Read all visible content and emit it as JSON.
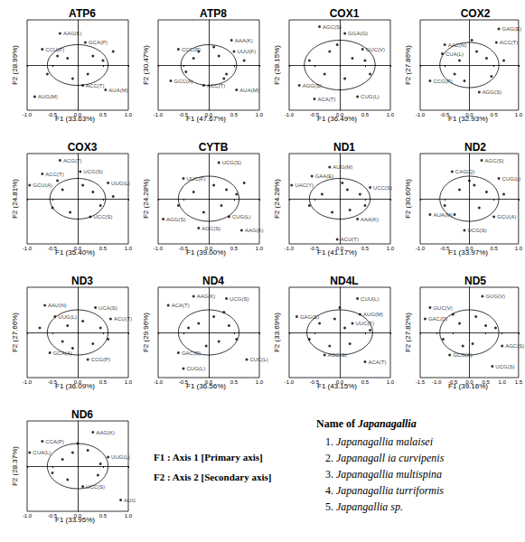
{
  "chart_data": [
    {
      "type": "scatter",
      "title": "ATP6",
      "xlabel": "F1 (33.63%)",
      "ylabel": "F2 (28.99%)",
      "marker": "circle",
      "color": "#000000",
      "grid": false,
      "tick_labels": "x",
      "xlim": [
        -1,
        1
      ],
      "ylim": [
        -1,
        1
      ],
      "xticks": [
        {
          "value": -1,
          "label": "-1.0"
        },
        {
          "value": -0.5,
          "label": "-0.5"
        },
        {
          "value": 0,
          "label": "0.0"
        },
        {
          "value": 0.5,
          "label": "0.5"
        },
        {
          "value": 1,
          "label": "1.0"
        }
      ],
      "ellipse": {
        "cx": 0,
        "cy": 0,
        "rx": 0.6,
        "ry": 0.45
      },
      "x": [
        -0.35,
        0.15,
        -0.7,
        -0.85,
        0.1,
        0.55,
        -0.4,
        -0.2,
        0.3,
        0.5,
        -0.6,
        0.2,
        0.7,
        -0.1
      ],
      "y": [
        0.7,
        0.5,
        0.35,
        -0.7,
        -0.45,
        -0.55,
        0.2,
        0.15,
        0.2,
        0.1,
        -0.2,
        -0.2,
        0.3,
        -0.3
      ],
      "labels": [
        "AAG(K)",
        "GCA(P)",
        "CCU(P)",
        "AUG(M)",
        "ACC(T)",
        "AUA(M)",
        null,
        null,
        null,
        null,
        null,
        null,
        null,
        null
      ]
    },
    {
      "type": "scatter",
      "title": "ATP8",
      "xlabel": "F1 (47.67%)",
      "ylabel": "F2 (30.47%)",
      "marker": "circle",
      "color": "#000000",
      "grid": false,
      "tick_labels": "x",
      "xlim": [
        -1,
        1
      ],
      "ylim": [
        -1,
        1
      ],
      "xticks": [
        {
          "value": -1,
          "label": "-1.0"
        },
        {
          "value": -0.5,
          "label": "-0.5"
        },
        {
          "value": 0,
          "label": "0.0"
        },
        {
          "value": 0.5,
          "label": "0.5"
        },
        {
          "value": 1,
          "label": "1.0"
        }
      ],
      "ellipse": {
        "cx": 0,
        "cy": 0,
        "rx": 0.55,
        "ry": 0.45
      },
      "x": [
        0.45,
        -0.6,
        0.5,
        -0.1,
        0.55,
        -0.75,
        -0.3,
        0.2,
        0.35,
        -0.45,
        0.1,
        0.7,
        -0.2,
        0.3
      ],
      "y": [
        0.55,
        0.35,
        0.3,
        -0.45,
        -0.55,
        -0.35,
        0.15,
        0.2,
        -0.2,
        -0.15,
        0.4,
        0.1,
        0.3,
        -0.3
      ],
      "labels": [
        "AAA(K)",
        "CCC(P)",
        "UUU(F)",
        "ACC(T)",
        "AUA(M)",
        "GCC(A)",
        null,
        null,
        null,
        null,
        null,
        null,
        null,
        null
      ]
    },
    {
      "type": "scatter",
      "title": "COX1",
      "xlabel": "F1 (36.49%)",
      "ylabel": "F2 (28.15%)",
      "marker": "circle",
      "color": "#000000",
      "grid": false,
      "tick_labels": "x",
      "xlim": [
        -1,
        1
      ],
      "ylim": [
        -1,
        1
      ],
      "xticks": [
        {
          "value": -1,
          "label": "-1.0"
        },
        {
          "value": -0.5,
          "label": "-0.5"
        },
        {
          "value": 0,
          "label": "0.0"
        },
        {
          "value": 0.5,
          "label": "0.5"
        },
        {
          "value": 1,
          "label": "1.0"
        }
      ],
      "ellipse": {
        "cx": 0,
        "cy": 0,
        "rx": 0.7,
        "ry": 0.55
      },
      "x": [
        0.1,
        -0.4,
        0.45,
        -0.8,
        0.35,
        -0.5,
        -0.2,
        0.25,
        -0.6,
        0.6,
        0.1,
        -0.3,
        0.5,
        -0.05
      ],
      "y": [
        0.7,
        0.85,
        0.35,
        -0.45,
        -0.7,
        -0.75,
        0.3,
        0.15,
        0.1,
        -0.2,
        -0.3,
        -0.2,
        0.1,
        0.45
      ],
      "labels": [
        "GGA(G)",
        "AGC(S)",
        "GUC(V)",
        "AGG(S)",
        "CUG(L)",
        "ACA(T)",
        null,
        null,
        null,
        null,
        null,
        null,
        null,
        null
      ]
    },
    {
      "type": "scatter",
      "title": "COX2",
      "xlabel": "F1 (32.93%)",
      "ylabel": "F2 (27.86%)",
      "marker": "circle",
      "color": "#000000",
      "grid": false,
      "tick_labels": "x",
      "xlim": [
        -1,
        1
      ],
      "ylim": [
        -1,
        1
      ],
      "xticks": [
        {
          "value": -1,
          "label": "-1.0"
        },
        {
          "value": -0.5,
          "label": "-0.5"
        },
        {
          "value": 0,
          "label": "0.0"
        },
        {
          "value": 0.5,
          "label": "0.5"
        },
        {
          "value": 1,
          "label": "1.0"
        }
      ],
      "ellipse": {
        "cx": 0,
        "cy": 0,
        "rx": 0.6,
        "ry": 0.5
      },
      "x": [
        0.6,
        0.55,
        -0.5,
        -0.8,
        -0.55,
        0.2,
        -0.2,
        0.15,
        0.35,
        -0.3,
        0.45,
        -0.1,
        0.7,
        0.05
      ],
      "y": [
        0.8,
        0.5,
        0.45,
        -0.35,
        0.25,
        -0.6,
        0.1,
        0.3,
        0.15,
        -0.2,
        -0.25,
        -0.35,
        0.1,
        0.55
      ],
      "labels": [
        "GAG(E)",
        "ACC(T)",
        "AAC(N)",
        "CCG(P)",
        "CUA(L)",
        "AGG(S)",
        null,
        null,
        null,
        null,
        null,
        null,
        null,
        null
      ]
    },
    {
      "type": "scatter",
      "title": "COX3",
      "xlabel": "F1 (35.40%)",
      "ylabel": "F2 (24.81%)",
      "marker": "circle",
      "color": "#000000",
      "grid": false,
      "tick_labels": "x",
      "xlim": [
        -1,
        1
      ],
      "ylim": [
        -1,
        1
      ],
      "xticks": [
        {
          "value": -1,
          "label": "-1.0"
        },
        {
          "value": -0.5,
          "label": "-0.5"
        },
        {
          "value": 0,
          "label": "0.0"
        },
        {
          "value": 0.5,
          "label": "0.5"
        },
        {
          "value": 1,
          "label": "1.0"
        }
      ],
      "ellipse": {
        "cx": 0,
        "cy": 0,
        "rx": 0.55,
        "ry": 0.45
      },
      "x": [
        -0.35,
        -0.7,
        0.05,
        0.6,
        0.25,
        -0.95,
        -0.3,
        0.3,
        -0.5,
        0.45,
        0.1,
        -0.15,
        0.7,
        -0.4
      ],
      "y": [
        0.85,
        0.55,
        0.6,
        0.35,
        -0.4,
        0.3,
        0.2,
        0.15,
        -0.2,
        -0.15,
        0.3,
        -0.3,
        0.05,
        0.4
      ],
      "labels": [
        "ACG(T)",
        "ACC(T)",
        "UCG(S)",
        "UUG(L)",
        "UCC(S)",
        "GCU(A)",
        null,
        null,
        null,
        null,
        null,
        null,
        null,
        null
      ]
    },
    {
      "type": "scatter",
      "title": "CYTB",
      "xlabel": "F1 (39.00%)",
      "ylabel": "F2 (24.28%)",
      "marker": "circle",
      "color": "#000000",
      "grid": false,
      "tick_labels": "x",
      "xlim": [
        -1,
        1
      ],
      "ylim": [
        -1,
        1
      ],
      "xticks": [
        {
          "value": -1,
          "label": "-1.0"
        },
        {
          "value": -0.5,
          "label": "-0.5"
        },
        {
          "value": 0,
          "label": "0.0"
        },
        {
          "value": 0.5,
          "label": "0.5"
        },
        {
          "value": 1,
          "label": "1.0"
        }
      ],
      "ellipse": {
        "cx": 0,
        "cy": 0,
        "rx": 0.6,
        "ry": 0.5
      },
      "x": [
        0.2,
        -0.5,
        -0.9,
        0.4,
        0.65,
        -0.2,
        -0.3,
        0.1,
        0.35,
        -0.6,
        0.55,
        -0.1,
        0.25,
        0.7
      ],
      "y": [
        0.8,
        0.45,
        -0.45,
        -0.4,
        -0.7,
        -0.65,
        0.15,
        0.3,
        0.2,
        -0.15,
        0.1,
        -0.3,
        -0.15,
        0.35
      ],
      "labels": [
        "UCG(S)",
        "UUC(F)",
        "AGG(S)",
        "CUG(L)",
        "AAG(K)",
        "AGC(S)",
        null,
        null,
        null,
        null,
        null,
        null,
        null,
        null
      ]
    },
    {
      "type": "scatter",
      "title": "ND1",
      "xlabel": "F1 (41.17%)",
      "ylabel": "F2 (24.28%)",
      "marker": "circle",
      "color": "#000000",
      "grid": false,
      "tick_labels": "x",
      "xlim": [
        -1,
        1
      ],
      "ylim": [
        -1,
        1
      ],
      "xticks": [
        {
          "value": -1,
          "label": "-1.0"
        },
        {
          "value": -0.5,
          "label": "-0.5"
        },
        {
          "value": 0,
          "label": "0.0"
        },
        {
          "value": 0.5,
          "label": "0.5"
        },
        {
          "value": 1,
          "label": "1.0"
        }
      ],
      "ellipse": {
        "cx": 0,
        "cy": 0,
        "rx": 0.6,
        "ry": 0.45
      },
      "x": [
        -0.2,
        -0.95,
        0.6,
        0.35,
        -0.05,
        -0.55,
        -0.35,
        0.15,
        0.4,
        -0.6,
        0.2,
        -0.15,
        0.5,
        0.05
      ],
      "y": [
        0.7,
        0.3,
        0.25,
        -0.45,
        -0.9,
        0.5,
        0.1,
        0.2,
        0.1,
        -0.15,
        -0.25,
        -0.3,
        -0.15,
        0.35
      ],
      "labels": [
        "AUG(M)",
        "UAC(Y)",
        "UCC(S)",
        "AAA(K)",
        "ACU(T)",
        "GAA(E)",
        null,
        null,
        null,
        null,
        null,
        null,
        null,
        null
      ]
    },
    {
      "type": "scatter",
      "title": "ND2",
      "xlabel": "F1 (33.97%)",
      "ylabel": "F2 (30.60%)",
      "marker": "circle",
      "color": "#000000",
      "grid": false,
      "tick_labels": "x",
      "xlim": [
        -1,
        1
      ],
      "ylim": [
        -1,
        1
      ],
      "xticks": [
        {
          "value": -1,
          "label": "-1.0"
        },
        {
          "value": -0.5,
          "label": "-0.5"
        },
        {
          "value": 0,
          "label": "0.0"
        },
        {
          "value": 0.5,
          "label": "0.5"
        },
        {
          "value": 1,
          "label": "1.0"
        }
      ],
      "ellipse": {
        "cx": 0,
        "cy": 0,
        "rx": 0.6,
        "ry": 0.5
      },
      "x": [
        0.25,
        -0.35,
        0.6,
        -0.8,
        0.5,
        -0.1,
        -0.2,
        0.1,
        0.35,
        -0.5,
        0.2,
        -0.3,
        0.7,
        0.0
      ],
      "y": [
        0.85,
        0.6,
        0.45,
        -0.35,
        -0.4,
        -0.7,
        0.2,
        0.3,
        0.15,
        -0.15,
        -0.2,
        -0.35,
        0.1,
        0.4
      ],
      "labels": [
        "AGC(S)",
        "CAG(Q)",
        "CUG(L)",
        "AUA(M)",
        "GCU(A)",
        "UCG(S)",
        null,
        null,
        null,
        null,
        null,
        null,
        null,
        null
      ]
    },
    {
      "type": "scatter",
      "title": "ND3",
      "xlabel": "F1 (36.09%)",
      "ylabel": "F2 (27.66%)",
      "marker": "circle",
      "color": "#000000",
      "grid": false,
      "tick_labels": "x",
      "xlim": [
        -1,
        1
      ],
      "ylim": [
        -1,
        1
      ],
      "xticks": [
        {
          "value": -1,
          "label": "-1.0"
        },
        {
          "value": -0.5,
          "label": "-0.5"
        },
        {
          "value": 0,
          "label": "0.0"
        },
        {
          "value": 0.5,
          "label": "0.5"
        },
        {
          "value": 1,
          "label": "1.0"
        }
      ],
      "ellipse": {
        "cx": 0,
        "cy": 0,
        "rx": 0.6,
        "ry": 0.5
      },
      "x": [
        -0.65,
        0.35,
        -0.45,
        0.65,
        -0.55,
        0.2,
        -0.2,
        0.1,
        0.45,
        -0.3,
        0.3,
        -0.1,
        0.6,
        -0.75
      ],
      "y": [
        0.6,
        0.55,
        0.35,
        0.3,
        -0.45,
        -0.6,
        0.15,
        0.25,
        0.1,
        -0.2,
        -0.25,
        -0.35,
        -0.15,
        0.1
      ],
      "labels": [
        "AAU(N)",
        "UCA(S)",
        "UUG(L)",
        "ACU(T)",
        "GCA(A)",
        "CCG(P)",
        null,
        null,
        null,
        null,
        null,
        null,
        null,
        null
      ]
    },
    {
      "type": "scatter",
      "title": "ND4",
      "xlabel": "F1 (36.56%)",
      "ylabel": "F2 (29.96%)",
      "marker": "circle",
      "color": "#000000",
      "grid": false,
      "tick_labels": "x",
      "xlim": [
        -1,
        1
      ],
      "ylim": [
        -1,
        1
      ],
      "xticks": [
        {
          "value": -1,
          "label": "-1.0"
        },
        {
          "value": -0.5,
          "label": "-0.5"
        },
        {
          "value": 0,
          "label": "0.0"
        },
        {
          "value": 0.5,
          "label": "0.5"
        },
        {
          "value": 1,
          "label": "1.0"
        }
      ],
      "ellipse": {
        "cx": 0,
        "cy": 0,
        "rx": 0.6,
        "ry": 0.5
      },
      "x": [
        -0.8,
        -0.3,
        0.35,
        -0.6,
        -0.5,
        0.75,
        -0.2,
        0.1,
        0.4,
        -0.4,
        0.2,
        -0.05,
        0.55,
        0.3
      ],
      "y": [
        0.6,
        0.8,
        0.75,
        -0.45,
        -0.8,
        -0.6,
        0.2,
        0.35,
        0.15,
        0.1,
        -0.2,
        -0.3,
        -0.15,
        0.45
      ],
      "labels": [
        "ACA(T)",
        "AAG(K)",
        "UCG(S)",
        "GAC(D)",
        "CUG(L)",
        "CUC(L)",
        null,
        null,
        null,
        null,
        null,
        null,
        null,
        null
      ]
    },
    {
      "type": "scatter",
      "title": "ND4L",
      "xlabel": "F1 (43.15%)",
      "ylabel": "F2 (33.69%)",
      "marker": "circle",
      "color": "#000000",
      "grid": false,
      "tick_labels": "x",
      "xlim": [
        -1,
        1
      ],
      "ylim": [
        -1,
        1
      ],
      "xticks": [
        {
          "value": -1,
          "label": "-1.0"
        },
        {
          "value": -0.5,
          "label": "-0.5"
        },
        {
          "value": 0,
          "label": "0.0"
        },
        {
          "value": 0.5,
          "label": "0.5"
        },
        {
          "value": 1,
          "label": "1.0"
        }
      ],
      "ellipse": {
        "cx": 0,
        "cy": 0,
        "rx": 0.65,
        "ry": 0.5
      },
      "x": [
        -0.85,
        0.4,
        0.25,
        0.35,
        -0.3,
        0.5,
        -0.4,
        -0.1,
        0.1,
        -0.6,
        0.2,
        -0.2,
        0.6,
        0.0
      ],
      "y": [
        0.35,
        0.4,
        0.2,
        0.75,
        -0.5,
        -0.65,
        0.2,
        0.3,
        0.1,
        -0.15,
        -0.25,
        -0.3,
        0.05,
        0.55
      ],
      "labels": [
        "GAG(E)",
        "AUG(M)",
        "UUC(F)",
        "CUU(L)",
        "AGC(S)",
        "ACA(T)",
        null,
        null,
        null,
        null,
        null,
        null,
        null,
        null
      ]
    },
    {
      "type": "scatter",
      "title": "ND5",
      "xlabel": "F1 (39.16%)",
      "ylabel": "F2 (27.82%)",
      "marker": "circle",
      "color": "#000000",
      "grid": false,
      "tick_labels": "x",
      "xlim": [
        -1.5,
        1.5
      ],
      "ylim": [
        -1,
        1
      ],
      "xticks": [
        {
          "value": -1.5,
          "label": "-1.5"
        },
        {
          "value": -1,
          "label": "-1.0"
        },
        {
          "value": -0.5,
          "label": "-0.5"
        },
        {
          "value": 0,
          "label": "0.0"
        },
        {
          "value": 0.5,
          "label": "0.5"
        },
        {
          "value": 1,
          "label": "1.0"
        },
        {
          "value": 1.5,
          "label": "1.5"
        }
      ],
      "ellipse": {
        "cx": 0,
        "cy": 0,
        "rx": 0.9,
        "ry": 0.5
      },
      "x": [
        0.4,
        -1.2,
        -1.35,
        1.0,
        0.7,
        -0.6,
        -0.3,
        0.2,
        0.5,
        -0.8,
        0.1,
        -0.2,
        0.8,
        -0.5
      ],
      "y": [
        0.8,
        0.55,
        0.3,
        -0.3,
        -0.75,
        -0.5,
        0.2,
        0.35,
        0.15,
        -0.15,
        -0.25,
        -0.3,
        0.1,
        0.4
      ],
      "labels": [
        "GUG(V)",
        "GUC(V)",
        "GAC(D)",
        "AGC(S)",
        "UCG(S)",
        "GCG(A)",
        null,
        null,
        null,
        null,
        null,
        null,
        null,
        null
      ]
    },
    {
      "type": "scatter",
      "title": "ND6",
      "xlabel": "F1 (33.95%)",
      "ylabel": "F2 (28.37%)",
      "marker": "circle",
      "color": "#000000",
      "grid": false,
      "tick_labels": "x",
      "xlim": [
        -1,
        1
      ],
      "ylim": [
        -1,
        1
      ],
      "xticks": [
        {
          "value": -1,
          "label": "-1.0"
        },
        {
          "value": -0.5,
          "label": "-0.5"
        },
        {
          "value": 0,
          "label": "0.0"
        },
        {
          "value": 0.5,
          "label": "0.5"
        },
        {
          "value": 1,
          "label": "1.0"
        }
      ],
      "ellipse": {
        "cx": 0,
        "cy": 0,
        "rx": 0.6,
        "ry": 0.5
      },
      "x": [
        0.3,
        -0.7,
        -0.95,
        0.6,
        0.1,
        0.85,
        -0.3,
        -0.1,
        0.2,
        -0.5,
        0.4,
        -0.2,
        0.45,
        0.0
      ],
      "y": [
        0.75,
        0.55,
        0.3,
        0.2,
        -0.45,
        -0.75,
        0.15,
        0.3,
        0.35,
        -0.15,
        -0.2,
        -0.3,
        0.05,
        0.5
      ],
      "labels": [
        "AAG(K)",
        "CCA(P)",
        "CUA(L)",
        "UUG(L)",
        "UCC(S)",
        "AUG",
        null,
        null,
        null,
        null,
        null,
        null,
        null,
        null
      ]
    }
  ],
  "notes": {
    "axis_key": [
      "F1 : Axis 1 [Primary axis]",
      "F2 : Axis 2 [Secondary axis]"
    ],
    "species_heading": {
      "prefix": "Name of",
      "genus": "Japanagallia"
    },
    "species": [
      {
        "number": "1.",
        "name": "Japanagallia malaisei"
      },
      {
        "number": "2.",
        "name": "Japanagall ia curvipenis"
      },
      {
        "number": "3.",
        "name": "Japanagallia multispina"
      },
      {
        "number": "4.",
        "name": "Japanagallia turriformis"
      },
      {
        "number": "5.",
        "name": "Japangallia sp."
      }
    ]
  }
}
